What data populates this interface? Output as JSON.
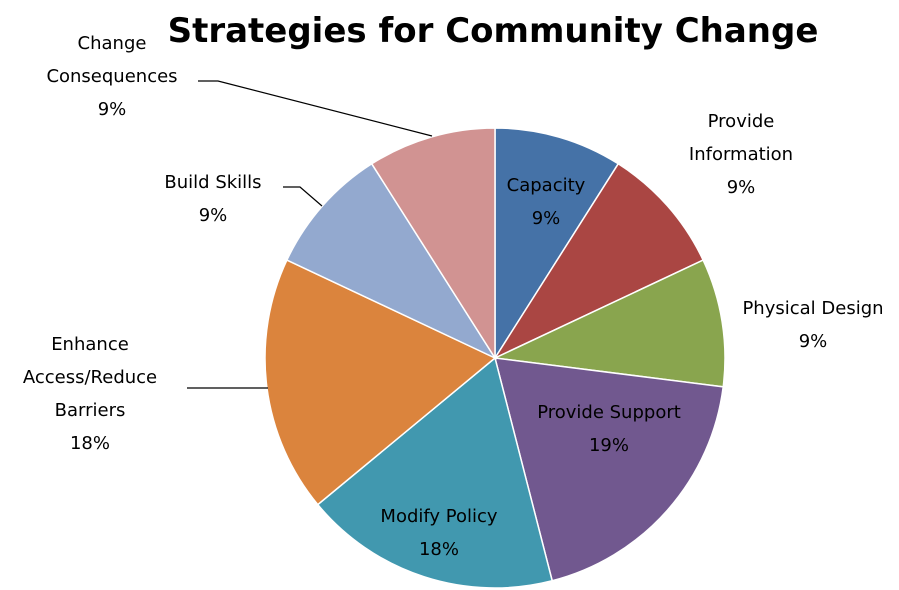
{
  "chart_data": {
    "type": "pie",
    "title": "Strategies for Community Change",
    "slices": [
      {
        "label": "Capacity",
        "value": 9,
        "display": "9%",
        "color": "#4572a7"
      },
      {
        "label": "Provide Information",
        "value": 9,
        "display": "9%",
        "color": "#aa4643"
      },
      {
        "label": "Physical Design",
        "value": 9,
        "display": "9%",
        "color": "#89a54e"
      },
      {
        "label": "Provide Support",
        "value": 19,
        "display": "19%",
        "color": "#71588f"
      },
      {
        "label": "Modify Policy",
        "value": 18,
        "display": "18%",
        "color": "#4198af"
      },
      {
        "label": "Enhance Access/Reduce Barriers",
        "value": 18,
        "display": "18%",
        "color": "#db843d"
      },
      {
        "label": "Build Skills",
        "value": 9,
        "display": "9%",
        "color": "#93a9cf"
      },
      {
        "label": "Change Consequences",
        "value": 9,
        "display": "9%",
        "color": "#d19392"
      }
    ],
    "legend": "none",
    "start_angle": "12 o'clock",
    "direction": "clockwise"
  }
}
